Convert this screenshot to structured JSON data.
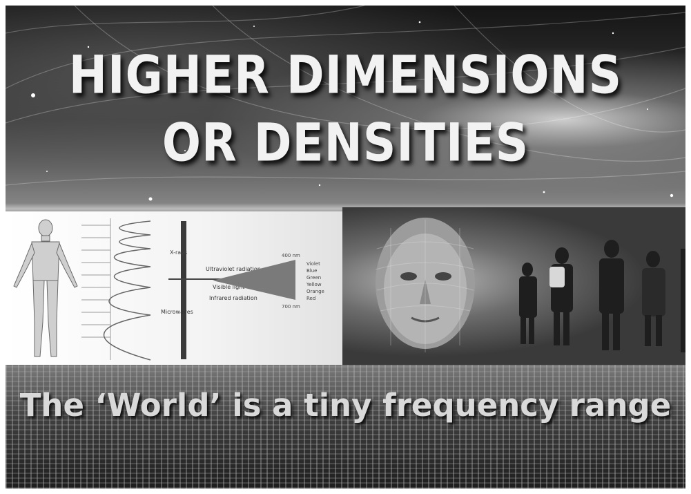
{
  "poster": {
    "title_line1": "HIGHER DIMENSIONS",
    "title_line2": "OR DENSITIES",
    "caption": "The ‘World’ is a tiny frequency range"
  },
  "spectrum": {
    "band_labels": [
      "Ultraviolet radiation",
      "Visible light",
      "Infrared radiation",
      "Microwaves",
      "X-rays"
    ],
    "color_labels": [
      "Violet",
      "Blue",
      "Green",
      "Yellow",
      "Orange",
      "Red"
    ],
    "wavelength_labels": [
      "400 nm",
      "700 nm"
    ]
  },
  "colors": {
    "title": "#f2f2f2",
    "caption": "#d9d9d9",
    "background": "#1a1a1a"
  }
}
